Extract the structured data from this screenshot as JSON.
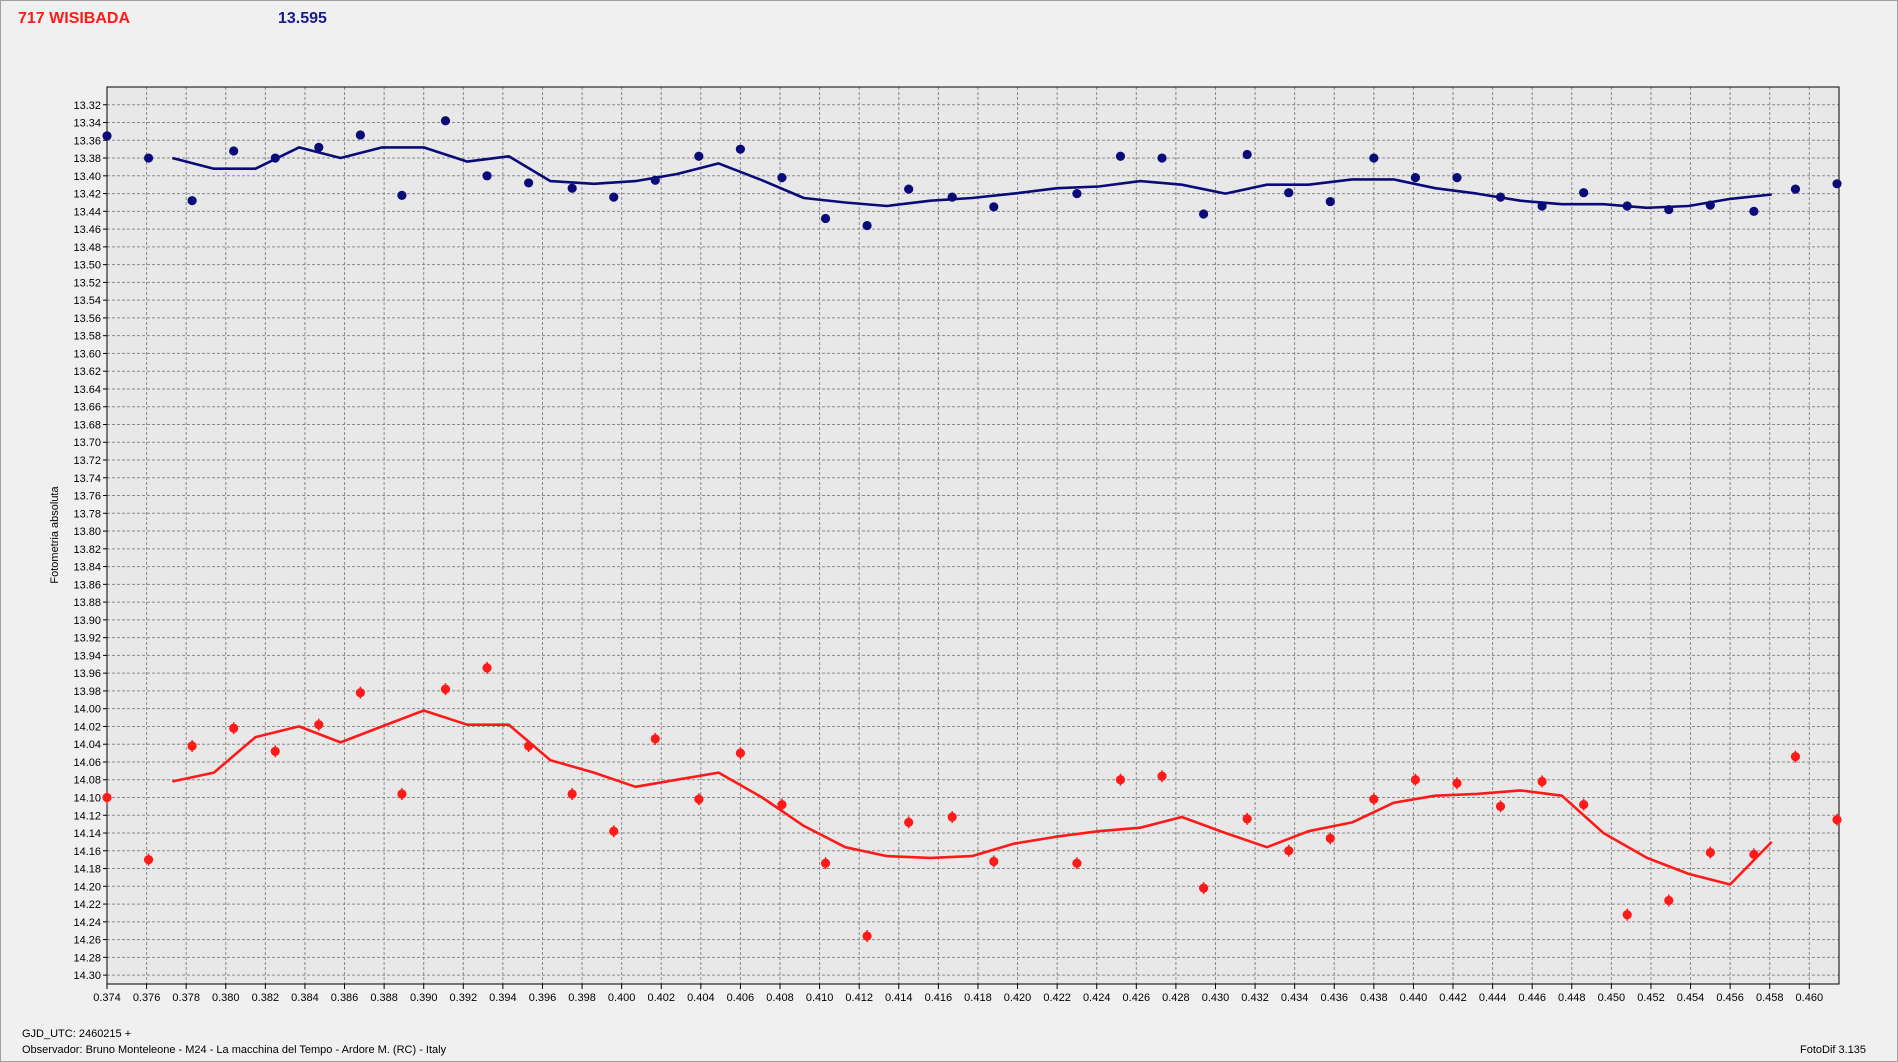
{
  "header": {
    "object_name": "717 WISIBADA",
    "reference_value": "13.595"
  },
  "footer": {
    "gjd": "GJD_UTC: 2460215 +",
    "observer": "Observador: Bruno Monteleone - M24 - La macchina del Tempo - Ardore M. (RC) - Italy",
    "software": "FotoDif 3.135"
  },
  "colors": {
    "upper": "#0a0a78",
    "lower": "#ff1a1a",
    "grid": "#8a8a8a",
    "plot_bg": "#e8e8e8"
  },
  "chart_data": {
    "type": "scatter",
    "ylabel": "Fotometria absoluta",
    "xlabel": "",
    "xlim": [
      0.374,
      0.4615
    ],
    "ylim": [
      14.31,
      13.3
    ],
    "y_inverted": true,
    "grid": true,
    "x_ticks": [
      "0.374",
      "0.376",
      "0.378",
      "0.380",
      "0.382",
      "0.384",
      "0.386",
      "0.388",
      "0.390",
      "0.392",
      "0.394",
      "0.396",
      "0.398",
      "0.400",
      "0.402",
      "0.404",
      "0.406",
      "0.408",
      "0.410",
      "0.412",
      "0.414",
      "0.416",
      "0.418",
      "0.420",
      "0.422",
      "0.424",
      "0.426",
      "0.428",
      "0.430",
      "0.432",
      "0.434",
      "0.436",
      "0.438",
      "0.440",
      "0.442",
      "0.444",
      "0.446",
      "0.448",
      "0.450",
      "0.452",
      "0.454",
      "0.456",
      "0.458",
      "0.460"
    ],
    "y_ticks": [
      "13.32",
      "13.34",
      "13.36",
      "13.38",
      "13.40",
      "13.42",
      "13.44",
      "13.46",
      "13.48",
      "13.50",
      "13.52",
      "13.54",
      "13.56",
      "13.58",
      "13.60",
      "13.62",
      "13.64",
      "13.66",
      "13.68",
      "13.70",
      "13.72",
      "13.74",
      "13.76",
      "13.78",
      "13.80",
      "13.82",
      "13.84",
      "13.86",
      "13.88",
      "13.90",
      "13.92",
      "13.94",
      "13.96",
      "13.98",
      "14.00",
      "14.02",
      "14.04",
      "14.06",
      "14.08",
      "14.10",
      "14.12",
      "14.14",
      "14.16",
      "14.18",
      "14.20",
      "14.22",
      "14.24",
      "14.26",
      "14.28",
      "14.30"
    ],
    "series": [
      {
        "key": "upper",
        "x": [
          0.374,
          0.3761,
          0.3783,
          0.3804,
          0.3825,
          0.3847,
          0.3868,
          0.3889,
          0.3911,
          0.3932,
          0.3953,
          0.3975,
          0.3996,
          0.4017,
          0.4039,
          0.406,
          0.4081,
          0.4103,
          0.4124,
          0.4145,
          0.4167,
          0.4188,
          0.423,
          0.4252,
          0.4273,
          0.4294,
          0.4316,
          0.4337,
          0.4358,
          0.438,
          0.4401,
          0.4422,
          0.4444,
          0.4465,
          0.4486,
          0.4508,
          0.4529,
          0.455,
          0.4572,
          0.4593,
          0.4614
        ],
        "y": [
          13.355,
          13.38,
          13.428,
          13.372,
          13.38,
          13.368,
          13.354,
          13.422,
          13.338,
          13.4,
          13.408,
          13.414,
          13.424,
          13.405,
          13.378,
          13.37,
          13.402,
          13.448,
          13.456,
          13.415,
          13.424,
          13.435,
          13.42,
          13.378,
          13.38,
          13.443,
          13.376,
          13.419,
          13.429,
          13.38,
          13.402,
          13.402,
          13.424,
          13.434,
          13.419,
          13.434,
          13.438,
          13.433,
          13.44,
          13.415,
          13.409
        ],
        "trend_x": [
          0.3773,
          0.3794,
          0.3815,
          0.3837,
          0.3858,
          0.3879,
          0.39,
          0.3922,
          0.3943,
          0.3964,
          0.3986,
          0.4007,
          0.4028,
          0.4049,
          0.4071,
          0.4092,
          0.4113,
          0.4134,
          0.4156,
          0.4177,
          0.4198,
          0.422,
          0.4241,
          0.4262,
          0.4283,
          0.4305,
          0.4326,
          0.4347,
          0.4369,
          0.439,
          0.4411,
          0.4432,
          0.4454,
          0.4475,
          0.4496,
          0.4518,
          0.4539,
          0.456,
          0.4581
        ],
        "trend_y": [
          13.38,
          13.392,
          13.392,
          13.368,
          13.38,
          13.368,
          13.368,
          13.384,
          13.378,
          13.406,
          13.409,
          13.406,
          13.398,
          13.386,
          13.405,
          13.425,
          13.43,
          13.434,
          13.428,
          13.425,
          13.42,
          13.414,
          13.412,
          13.406,
          13.41,
          13.42,
          13.41,
          13.41,
          13.404,
          13.404,
          13.414,
          13.42,
          13.428,
          13.432,
          13.432,
          13.436,
          13.434,
          13.426,
          13.421
        ]
      },
      {
        "key": "lower",
        "x": [
          0.374,
          0.3761,
          0.3783,
          0.3804,
          0.3825,
          0.3847,
          0.3868,
          0.3889,
          0.3911,
          0.3932,
          0.3953,
          0.3975,
          0.3996,
          0.4017,
          0.4039,
          0.406,
          0.4081,
          0.4103,
          0.4124,
          0.4145,
          0.4167,
          0.4188,
          0.423,
          0.4252,
          0.4273,
          0.4294,
          0.4316,
          0.4337,
          0.4358,
          0.438,
          0.4401,
          0.4422,
          0.4444,
          0.4465,
          0.4486,
          0.4508,
          0.4529,
          0.455,
          0.4572,
          0.4593,
          0.4614
        ],
        "y": [
          14.1,
          14.17,
          14.042,
          14.022,
          14.048,
          14.018,
          13.982,
          14.096,
          13.978,
          13.954,
          14.042,
          14.096,
          14.138,
          14.034,
          14.102,
          14.05,
          14.108,
          14.174,
          14.256,
          14.128,
          14.122,
          14.172,
          14.174,
          14.08,
          14.076,
          14.202,
          14.124,
          14.16,
          14.146,
          14.102,
          14.08,
          14.084,
          14.11,
          14.082,
          14.108,
          14.232,
          14.216,
          14.162,
          14.164,
          14.054,
          14.125
        ],
        "trend_x": [
          0.3773,
          0.3794,
          0.3815,
          0.3837,
          0.3858,
          0.3879,
          0.39,
          0.3922,
          0.3943,
          0.3964,
          0.3986,
          0.4007,
          0.4028,
          0.4049,
          0.4071,
          0.4092,
          0.4113,
          0.4134,
          0.4156,
          0.4177,
          0.4198,
          0.422,
          0.4241,
          0.4262,
          0.4283,
          0.4305,
          0.4326,
          0.4347,
          0.4369,
          0.439,
          0.4411,
          0.4432,
          0.4454,
          0.4475,
          0.4496,
          0.4518,
          0.4539,
          0.456,
          0.4581
        ],
        "trend_y": [
          14.082,
          14.072,
          14.032,
          14.02,
          14.038,
          14.02,
          14.002,
          14.018,
          14.018,
          14.058,
          14.072,
          14.088,
          14.08,
          14.072,
          14.1,
          14.132,
          14.156,
          14.166,
          14.168,
          14.166,
          14.152,
          14.144,
          14.138,
          14.134,
          14.122,
          14.14,
          14.156,
          14.138,
          14.128,
          14.106,
          14.098,
          14.096,
          14.092,
          14.098,
          14.14,
          14.168,
          14.186,
          14.198,
          14.15
        ]
      }
    ]
  }
}
